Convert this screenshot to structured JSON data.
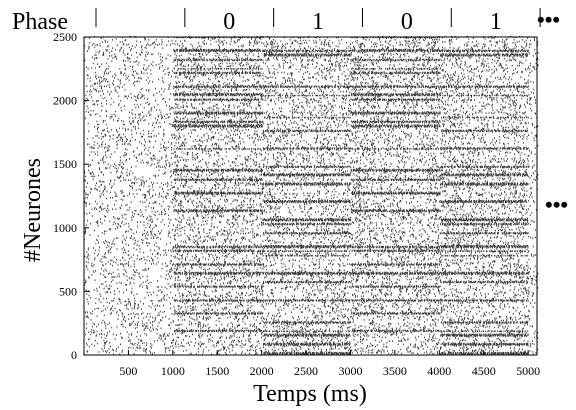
{
  "chart_data": {
    "type": "scatter",
    "subtype": "raster-plot",
    "title": "",
    "xlabel": "Temps (ms)",
    "ylabel": "#Neurones",
    "xlim": [
      0,
      5100
    ],
    "ylim": [
      0,
      2500
    ],
    "xticks": [
      500,
      1000,
      1500,
      2000,
      2500,
      3000,
      3500,
      4000,
      4500,
      5000
    ],
    "yticks": [
      0,
      500,
      1000,
      1500,
      2000,
      2500
    ],
    "grid": false,
    "legend": "none",
    "phase_row": {
      "label": "Phase",
      "boundaries_ms": [
        0,
        1000,
        2000,
        3000,
        4000,
        5000
      ],
      "phases": [
        "",
        "0",
        "1",
        "0",
        "1"
      ],
      "continuation": "•••"
    },
    "right_continuation": "•••",
    "phase_periods": [
      {
        "phase": "0",
        "start": 1000,
        "end": 2000
      },
      {
        "phase": "1",
        "start": 2000,
        "end": 3000
      },
      {
        "phase": "0",
        "start": 3000,
        "end": 4000
      },
      {
        "phase": "1",
        "start": 4000,
        "end": 5000
      }
    ],
    "spike_color": "#333333"
  }
}
